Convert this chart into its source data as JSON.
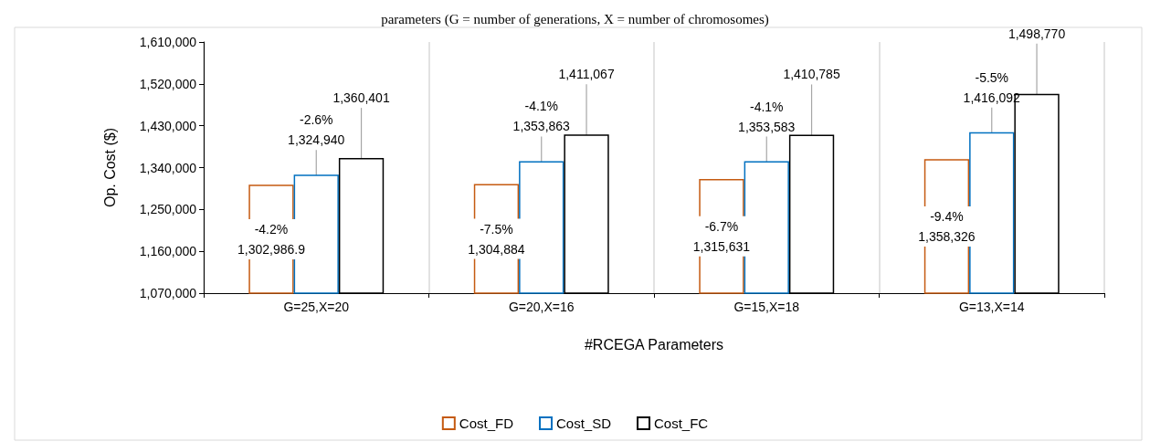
{
  "chart_data": {
    "type": "bar",
    "title": "parameters (G = number of generations, X = number of chromosomes)",
    "xlabel": "#RCEGA Parameters",
    "ylabel": "Op. Cost ($)",
    "categories": [
      "G=25,X=20",
      "G=20,X=16",
      "G=15,X=18",
      "G=13,X=14"
    ],
    "series": [
      {
        "name": "Cost_FD",
        "color": "#c55a11",
        "values": [
          1302986.9,
          1304884,
          1315631,
          1358326
        ],
        "value_labels": [
          "-4.2%\n1,302,986.9",
          "-7.5%\n1,304,884",
          "-6.7%\n1,315,631",
          "-9.4%\n1,358,326"
        ]
      },
      {
        "name": "Cost_SD",
        "color": "#0070c0",
        "values": [
          1324940,
          1353863,
          1353583,
          1416092
        ],
        "value_labels": [
          "-2.6%\n1,324,940",
          "-4.1%\n1,353,863",
          "-4.1%\n1,353,583",
          "-5.5%\n1,416,092"
        ]
      },
      {
        "name": "Cost_FC",
        "color": "#000000",
        "values": [
          1360401,
          1411067,
          1410785,
          1498770
        ],
        "value_labels": [
          "1,360,401",
          "1,411,067",
          "1,410,785",
          "1,498,770"
        ]
      }
    ],
    "ylim": [
      1070000,
      1610000
    ],
    "yticks": [
      {
        "value": 1070000,
        "label": "1,070,000"
      },
      {
        "value": 1160000,
        "label": "1,160,000"
      },
      {
        "value": 1250000,
        "label": "1,250,000"
      },
      {
        "value": 1340000,
        "label": "1,340,000"
      },
      {
        "value": 1430000,
        "label": "1,430,000"
      },
      {
        "value": 1520000,
        "label": "1,520,000"
      },
      {
        "value": 1610000,
        "label": "1,610,000"
      }
    ],
    "grid": "x",
    "legend": "bottom"
  }
}
